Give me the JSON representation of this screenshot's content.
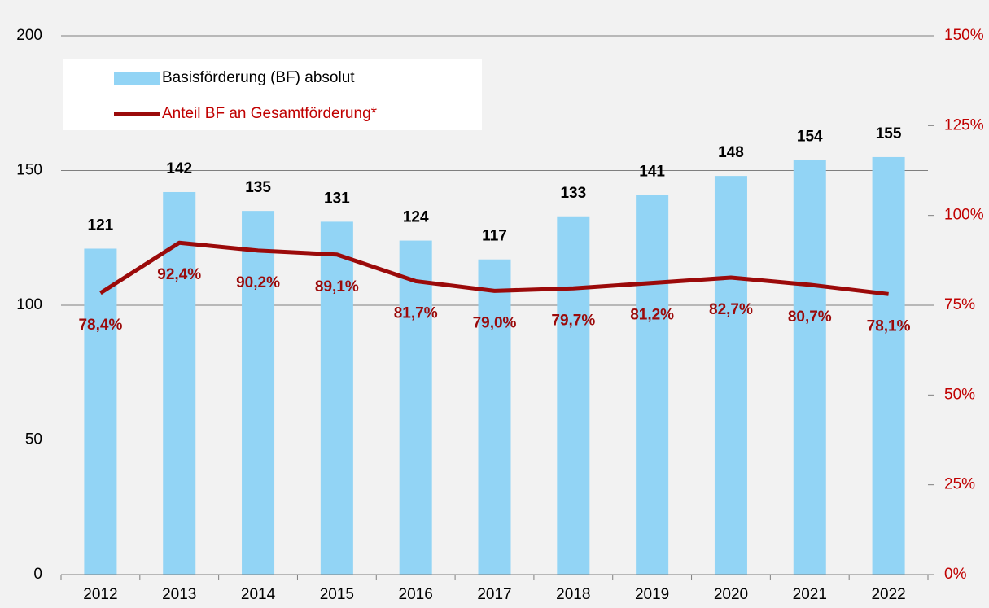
{
  "chart_data": {
    "type": "bar",
    "categories": [
      "2012",
      "2013",
      "2014",
      "2015",
      "2016",
      "2017",
      "2018",
      "2019",
      "2020",
      "2021",
      "2022"
    ],
    "series": [
      {
        "name": "Basisförderung (BF) absolut",
        "type": "bar",
        "color": "#92d4f5",
        "values": [
          121,
          142,
          135,
          131,
          124,
          117,
          133,
          141,
          148,
          154,
          155
        ]
      },
      {
        "name": "Anteil BF an Gesamtförderung*",
        "type": "line",
        "axis": "y2",
        "color": "#9b0a0a",
        "values": [
          78.4,
          92.4,
          90.2,
          89.1,
          81.7,
          79.0,
          79.7,
          81.2,
          82.7,
          80.7,
          78.1
        ],
        "value_labels": [
          "78,4%",
          "92,4%",
          "90,2%",
          "89,1%",
          "81,7%",
          "79,0%",
          "79,7%",
          "81,2%",
          "82,7%",
          "80,7%",
          "78,1%"
        ]
      }
    ],
    "ylim": [
      0,
      200
    ],
    "yticks": [
      0,
      50,
      100,
      150,
      200
    ],
    "y2lim": [
      0,
      150
    ],
    "y2ticks": [
      {
        "value": 0,
        "label": "0%"
      },
      {
        "value": 25,
        "label": "25%"
      },
      {
        "value": 50,
        "label": "50%"
      },
      {
        "value": 75,
        "label": "75%"
      },
      {
        "value": 100,
        "label": "100%"
      },
      {
        "value": 125,
        "label": "125%"
      },
      {
        "value": 150,
        "label": "150%"
      }
    ],
    "grid": true,
    "legend": "top-left"
  }
}
